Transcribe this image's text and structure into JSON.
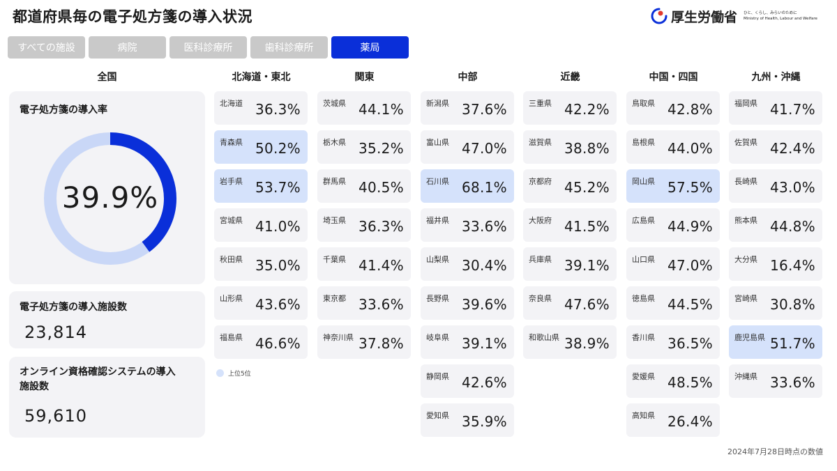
{
  "title": "都道府県毎の電子処方箋の導入状況",
  "logo": {
    "name": "厚生労働省",
    "tagline": "ひと、くらし、みらいのために",
    "english": "Ministry of Health, Labour and Welfare"
  },
  "tabs": [
    {
      "label": "すべての施設",
      "active": false
    },
    {
      "label": "病院",
      "active": false
    },
    {
      "label": "医科診療所",
      "active": false
    },
    {
      "label": "歯科診療所",
      "active": false
    },
    {
      "label": "薬局",
      "active": true
    }
  ],
  "national": {
    "heading": "全国",
    "rate_label": "電子処方箋の導入率",
    "rate_value": "39.9%",
    "rate_fraction": 0.399,
    "facilities_label": "電子処方箋の導入施設数",
    "facilities_value": "23,814",
    "online_label_line1": "オンライン資格確認システムの導入",
    "online_label_line2": "施設数",
    "online_value": "59,610"
  },
  "colors": {
    "accent": "#0a2fd9",
    "donut_track": "#c9d7f7",
    "highlight": "#d5e2fb",
    "card": "#f3f3f6",
    "tab_inactive": "#c9c9c9"
  },
  "regions": [
    {
      "name": "北海道・東北",
      "prefectures": [
        {
          "name": "北海道",
          "value": "36.3%",
          "top5": false
        },
        {
          "name": "青森県",
          "value": "50.2%",
          "top5": true
        },
        {
          "name": "岩手県",
          "value": "53.7%",
          "top5": true
        },
        {
          "name": "宮城県",
          "value": "41.0%",
          "top5": false
        },
        {
          "name": "秋田県",
          "value": "35.0%",
          "top5": false
        },
        {
          "name": "山形県",
          "value": "43.6%",
          "top5": false
        },
        {
          "name": "福島県",
          "value": "46.6%",
          "top5": false
        }
      ]
    },
    {
      "name": "関東",
      "prefectures": [
        {
          "name": "茨城県",
          "value": "44.1%",
          "top5": false
        },
        {
          "name": "栃木県",
          "value": "35.2%",
          "top5": false
        },
        {
          "name": "群馬県",
          "value": "40.5%",
          "top5": false
        },
        {
          "name": "埼玉県",
          "value": "36.3%",
          "top5": false
        },
        {
          "name": "千葉県",
          "value": "41.4%",
          "top5": false
        },
        {
          "name": "東京都",
          "value": "33.6%",
          "top5": false
        },
        {
          "name": "神奈川県",
          "value": "37.8%",
          "top5": false
        }
      ]
    },
    {
      "name": "中部",
      "prefectures": [
        {
          "name": "新潟県",
          "value": "37.6%",
          "top5": false
        },
        {
          "name": "富山県",
          "value": "47.0%",
          "top5": false
        },
        {
          "name": "石川県",
          "value": "68.1%",
          "top5": true
        },
        {
          "name": "福井県",
          "value": "33.6%",
          "top5": false
        },
        {
          "name": "山梨県",
          "value": "30.4%",
          "top5": false
        },
        {
          "name": "長野県",
          "value": "39.6%",
          "top5": false
        },
        {
          "name": "岐阜県",
          "value": "39.1%",
          "top5": false
        },
        {
          "name": "静岡県",
          "value": "42.6%",
          "top5": false
        },
        {
          "name": "愛知県",
          "value": "35.9%",
          "top5": false
        }
      ]
    },
    {
      "name": "近畿",
      "prefectures": [
        {
          "name": "三重県",
          "value": "42.2%",
          "top5": false
        },
        {
          "name": "滋賀県",
          "value": "38.8%",
          "top5": false
        },
        {
          "name": "京都府",
          "value": "45.2%",
          "top5": false
        },
        {
          "name": "大阪府",
          "value": "41.5%",
          "top5": false
        },
        {
          "name": "兵庫県",
          "value": "39.1%",
          "top5": false
        },
        {
          "name": "奈良県",
          "value": "47.6%",
          "top5": false
        },
        {
          "name": "和歌山県",
          "value": "38.9%",
          "top5": false
        }
      ]
    },
    {
      "name": "中国・四国",
      "prefectures": [
        {
          "name": "鳥取県",
          "value": "42.8%",
          "top5": false
        },
        {
          "name": "島根県",
          "value": "44.0%",
          "top5": false
        },
        {
          "name": "岡山県",
          "value": "57.5%",
          "top5": true
        },
        {
          "name": "広島県",
          "value": "44.9%",
          "top5": false
        },
        {
          "name": "山口県",
          "value": "47.0%",
          "top5": false
        },
        {
          "name": "徳島県",
          "value": "44.5%",
          "top5": false
        },
        {
          "name": "香川県",
          "value": "36.5%",
          "top5": false
        },
        {
          "name": "愛媛県",
          "value": "48.5%",
          "top5": false
        },
        {
          "name": "高知県",
          "value": "26.4%",
          "top5": false
        }
      ]
    },
    {
      "name": "九州・沖縄",
      "prefectures": [
        {
          "name": "福岡県",
          "value": "41.7%",
          "top5": false
        },
        {
          "name": "佐賀県",
          "value": "42.4%",
          "top5": false
        },
        {
          "name": "長崎県",
          "value": "43.0%",
          "top5": false
        },
        {
          "name": "熊本県",
          "value": "44.8%",
          "top5": false
        },
        {
          "name": "大分県",
          "value": "16.4%",
          "top5": false
        },
        {
          "name": "宮崎県",
          "value": "30.8%",
          "top5": false
        },
        {
          "name": "鹿児島県",
          "value": "51.7%",
          "top5": true
        },
        {
          "name": "沖縄県",
          "value": "33.6%",
          "top5": false
        }
      ]
    }
  ],
  "legend": {
    "label": "上位5位"
  },
  "footnote": "2024年7月28日時点の数値"
}
